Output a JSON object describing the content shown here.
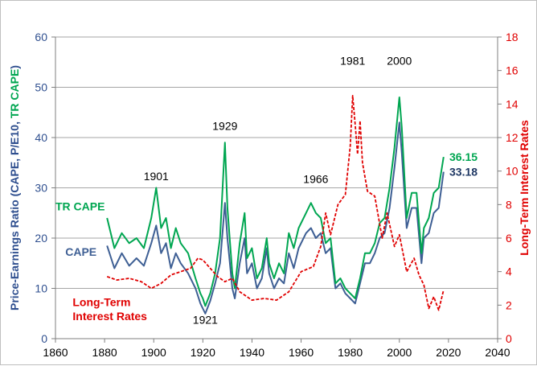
{
  "chart_data": {
    "type": "line",
    "xlim": [
      1860,
      2040
    ],
    "x_ticks": [
      "1860",
      "1880",
      "1900",
      "1920",
      "1940",
      "1960",
      "1980",
      "2000",
      "2020",
      "2040"
    ],
    "left_axis": {
      "label": "Price-Earnings Ratio (CAPE, P/E10, TR CAPE)",
      "label_parts": [
        {
          "text": "Price-Earnings Ratio (CAPE, P/E10, ",
          "color": "#2f4f8f"
        },
        {
          "text": "TR CAPE",
          "color": "#00a651"
        },
        {
          "text": ")",
          "color": "#2f4f8f"
        }
      ],
      "ylim": [
        0,
        60
      ],
      "ticks": [
        "0",
        "10",
        "20",
        "30",
        "40",
        "50",
        "60"
      ],
      "color": "#2f4f8f"
    },
    "right_axis": {
      "label": "Long-Term Interest Rates",
      "ylim": [
        0,
        18
      ],
      "ticks": [
        "0",
        "2",
        "4",
        "6",
        "8",
        "10",
        "12",
        "14",
        "16",
        "18"
      ],
      "color": "#e00000"
    },
    "grid": "horizontal",
    "series": [
      {
        "name": "CAPE",
        "axis": "left",
        "color": "#3e5f94",
        "style": "solid",
        "x": [
          1881,
          1884,
          1887,
          1890,
          1893,
          1896,
          1899,
          1901,
          1903,
          1905,
          1907,
          1909,
          1911,
          1914,
          1917,
          1919,
          1920,
          1921,
          1923,
          1925,
          1927,
          1929,
          1930,
          1932,
          1933,
          1935,
          1937,
          1938,
          1940,
          1942,
          1944,
          1946,
          1947,
          1949,
          1951,
          1953,
          1955,
          1957,
          1959,
          1962,
          1964,
          1966,
          1968,
          1970,
          1972,
          1974,
          1976,
          1978,
          1980,
          1982,
          1984,
          1986,
          1988,
          1990,
          1992,
          1994,
          1996,
          1998,
          2000,
          2001,
          2003,
          2005,
          2007,
          2009,
          2010,
          2012,
          2014,
          2016,
          2018
        ],
        "values": [
          18.5,
          14,
          17,
          14.5,
          16,
          14.5,
          19,
          22.5,
          17,
          19,
          14,
          17,
          15,
          13,
          10,
          7,
          6,
          5,
          7.5,
          11,
          15,
          27,
          20,
          10,
          8,
          15,
          20,
          13,
          15,
          10,
          12,
          18,
          13,
          10,
          12,
          11,
          17,
          14,
          18,
          21,
          22,
          20,
          21,
          17,
          18,
          10,
          11,
          9,
          8,
          7,
          11,
          15,
          15,
          17,
          20,
          21,
          26,
          34,
          43,
          37,
          22,
          26,
          26,
          15,
          20,
          21,
          25,
          26,
          33.18
        ]
      },
      {
        "name": "TR CAPE",
        "axis": "left",
        "color": "#00a651",
        "style": "solid",
        "x": [
          1881,
          1884,
          1887,
          1890,
          1893,
          1896,
          1899,
          1901,
          1903,
          1905,
          1907,
          1909,
          1911,
          1914,
          1917,
          1919,
          1920,
          1921,
          1923,
          1925,
          1927,
          1929,
          1930,
          1932,
          1933,
          1935,
          1937,
          1938,
          1940,
          1942,
          1944,
          1946,
          1947,
          1949,
          1951,
          1953,
          1955,
          1957,
          1959,
          1962,
          1964,
          1966,
          1968,
          1970,
          1972,
          1974,
          1976,
          1978,
          1980,
          1982,
          1984,
          1986,
          1988,
          1990,
          1992,
          1994,
          1996,
          1998,
          2000,
          2001,
          2003,
          2005,
          2007,
          2009,
          2010,
          2012,
          2014,
          2016,
          2018
        ],
        "values": [
          24,
          18,
          21,
          19,
          20,
          18,
          24,
          30,
          22,
          24,
          18,
          22,
          19,
          17,
          12,
          9,
          8,
          6.5,
          9,
          13,
          20,
          39,
          26,
          13,
          10,
          19,
          25,
          16,
          18,
          12,
          14,
          20,
          15,
          12,
          15,
          13,
          21,
          18,
          22,
          25,
          27,
          25,
          24,
          19,
          20,
          11,
          12,
          10,
          9,
          8,
          12,
          17,
          17,
          19,
          23,
          24,
          30,
          38,
          48,
          42,
          24,
          29,
          29,
          17,
          22,
          24,
          29,
          30,
          36.15
        ]
      },
      {
        "name": "Long-Term Interest Rates",
        "axis": "right",
        "color": "#e00000",
        "style": "dashed",
        "x": [
          1881,
          1885,
          1890,
          1895,
          1899,
          1903,
          1907,
          1911,
          1915,
          1918,
          1920,
          1923,
          1926,
          1929,
          1932,
          1935,
          1940,
          1945,
          1950,
          1955,
          1960,
          1965,
          1968,
          1970,
          1972,
          1975,
          1978,
          1980,
          1981,
          1982,
          1983,
          1984,
          1985,
          1987,
          1990,
          1993,
          1995,
          1998,
          2000,
          2003,
          2006,
          2008,
          2010,
          2012,
          2014,
          2016,
          2018
        ],
        "values": [
          3.7,
          3.5,
          3.6,
          3.4,
          3.0,
          3.3,
          3.8,
          4.0,
          4.2,
          4.8,
          4.7,
          4.2,
          3.7,
          3.4,
          3.6,
          2.8,
          2.3,
          2.4,
          2.3,
          2.8,
          4.0,
          4.3,
          5.5,
          7.5,
          6.2,
          8.0,
          8.6,
          11.5,
          14.5,
          12.8,
          11.0,
          13.0,
          10.5,
          8.8,
          8.5,
          6.0,
          7.5,
          5.5,
          6.2,
          4.0,
          4.8,
          3.8,
          3.2,
          1.8,
          2.5,
          1.7,
          2.9
        ]
      }
    ],
    "annotations": [
      {
        "text": "1901",
        "x": 1901,
        "y": 31.5,
        "axis": "left"
      },
      {
        "text": "1929",
        "x": 1929,
        "y": 41.5,
        "axis": "left"
      },
      {
        "text": "1921",
        "x": 1921,
        "y": 3.0,
        "axis": "left"
      },
      {
        "text": "1966",
        "x": 1966,
        "y": 31.0,
        "axis": "left"
      },
      {
        "text": "1981",
        "x": 1981,
        "y": 54.5,
        "axis": "left"
      },
      {
        "text": "2000",
        "x": 2000,
        "y": 54.5,
        "axis": "left"
      }
    ],
    "series_labels": [
      {
        "text": "TR CAPE",
        "color": "#00a651",
        "x": 1860,
        "y": 25.5
      },
      {
        "text": "CAPE",
        "color": "#3e5f94",
        "x": 1864,
        "y": 16.5
      },
      {
        "text": "Long-Term",
        "color": "#e00000",
        "x": 1867,
        "y": 6.5
      },
      {
        "text": "Interest Rates",
        "color": "#e00000",
        "x": 1867,
        "y": 3.7
      }
    ],
    "end_labels": [
      {
        "text": "36.15",
        "color": "#00a651",
        "value": 36.15
      },
      {
        "text": "33.18",
        "color": "#1f3864",
        "value": 33.18
      }
    ]
  }
}
